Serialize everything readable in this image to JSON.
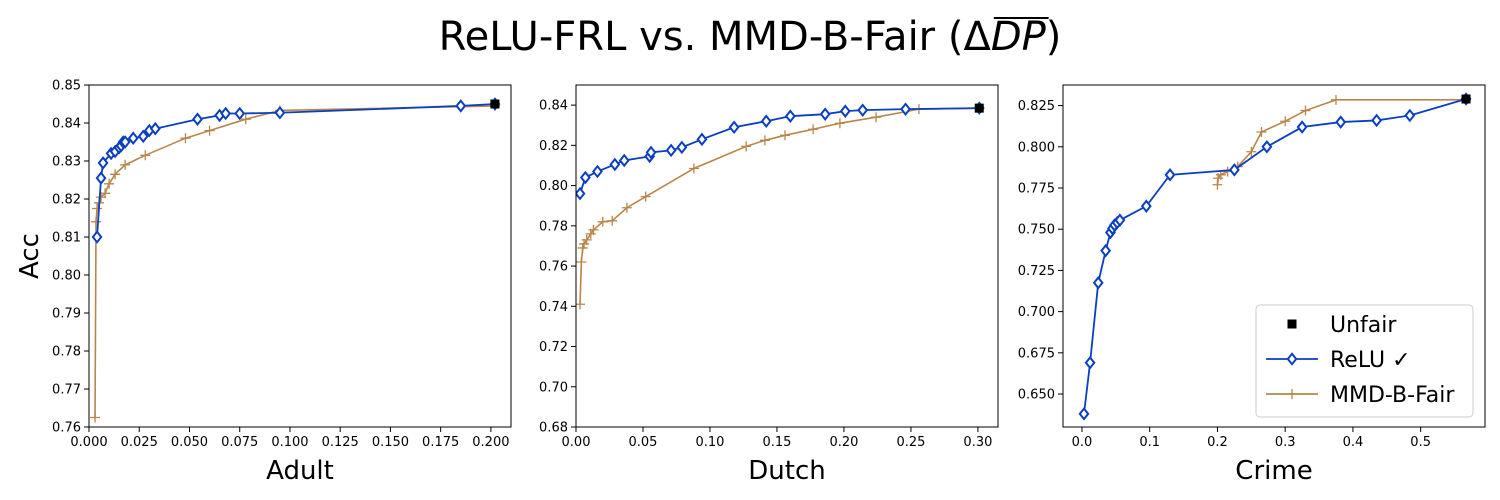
{
  "figure": {
    "title": "ReLU-FRL vs. MMD-B-Fair (ΔDP)",
    "title_main": "ReLU-FRL vs. MMD-B-Fair (Δ",
    "title_dp": "DP",
    "title_close": ")"
  },
  "legend": {
    "placement": "lower-right",
    "entries": [
      "Unfair",
      "ReLU ✓",
      "MMD-B-Fair"
    ]
  },
  "colors": {
    "relu": "#0a3fc2",
    "mmd": "#b8864a",
    "unfair": "#000000"
  },
  "chart_data": [
    {
      "type": "line",
      "xlabel": "Adult",
      "ylabel": "Acc",
      "xlim": [
        0.0,
        0.21
      ],
      "ylim": [
        0.76,
        0.85
      ],
      "xticks": [
        "0.000",
        "0.025",
        "0.050",
        "0.075",
        "0.100",
        "0.125",
        "0.150",
        "0.175",
        "0.200"
      ],
      "xtick_values": [
        0.0,
        0.025,
        0.05,
        0.075,
        0.1,
        0.125,
        0.15,
        0.175,
        0.2
      ],
      "yticks": [
        "0.76",
        "0.77",
        "0.78",
        "0.79",
        "0.80",
        "0.81",
        "0.82",
        "0.83",
        "0.84",
        "0.85"
      ],
      "ytick_values": [
        0.76,
        0.77,
        0.78,
        0.79,
        0.8,
        0.81,
        0.82,
        0.83,
        0.84,
        0.85
      ],
      "series": [
        {
          "name": "Unfair",
          "marker": "square",
          "points": [
            [
              0.202,
              0.845
            ]
          ]
        },
        {
          "name": "ReLU ✓",
          "marker": "diamond",
          "points": [
            [
              0.004,
              0.81
            ],
            [
              0.006,
              0.8255
            ],
            [
              0.007,
              0.8295
            ],
            [
              0.011,
              0.832
            ],
            [
              0.013,
              0.8325
            ],
            [
              0.015,
              0.8335
            ],
            [
              0.016,
              0.834
            ],
            [
              0.017,
              0.835
            ],
            [
              0.018,
              0.835
            ],
            [
              0.022,
              0.836
            ],
            [
              0.027,
              0.8365
            ],
            [
              0.03,
              0.838
            ],
            [
              0.033,
              0.8385
            ],
            [
              0.054,
              0.841
            ],
            [
              0.065,
              0.842
            ],
            [
              0.068,
              0.8425
            ],
            [
              0.075,
              0.8425
            ],
            [
              0.095,
              0.8427
            ],
            [
              0.185,
              0.8445
            ],
            [
              0.202,
              0.845
            ]
          ]
        },
        {
          "name": "MMD-B-Fair",
          "marker": "plus",
          "points": [
            [
              0.003,
              0.7625
            ],
            [
              0.0035,
              0.814
            ],
            [
              0.004,
              0.8175
            ],
            [
              0.005,
              0.819
            ],
            [
              0.006,
              0.8205
            ],
            [
              0.008,
              0.8215
            ],
            [
              0.01,
              0.824
            ],
            [
              0.013,
              0.8265
            ],
            [
              0.018,
              0.829
            ],
            [
              0.028,
              0.8315
            ],
            [
              0.048,
              0.836
            ],
            [
              0.06,
              0.838
            ],
            [
              0.078,
              0.841
            ],
            [
              0.095,
              0.8433
            ],
            [
              0.202,
              0.8445
            ]
          ]
        }
      ]
    },
    {
      "type": "line",
      "xlabel": "Dutch",
      "ylabel": "",
      "xlim": [
        0.0,
        0.315
      ],
      "ylim": [
        0.68,
        0.85
      ],
      "xticks": [
        "0.00",
        "0.05",
        "0.10",
        "0.15",
        "0.20",
        "0.25",
        "0.30"
      ],
      "xtick_values": [
        0.0,
        0.05,
        0.1,
        0.15,
        0.2,
        0.25,
        0.3
      ],
      "yticks": [
        "0.68",
        "0.70",
        "0.72",
        "0.74",
        "0.76",
        "0.78",
        "0.80",
        "0.82",
        "0.84"
      ],
      "ytick_values": [
        0.68,
        0.7,
        0.72,
        0.74,
        0.76,
        0.78,
        0.8,
        0.82,
        0.84
      ],
      "series": [
        {
          "name": "Unfair",
          "marker": "square",
          "points": [
            [
              0.301,
              0.8385
            ]
          ]
        },
        {
          "name": "ReLU ✓",
          "marker": "diamond",
          "points": [
            [
              0.003,
              0.796
            ],
            [
              0.007,
              0.804
            ],
            [
              0.016,
              0.807
            ],
            [
              0.029,
              0.8105
            ],
            [
              0.036,
              0.8125
            ],
            [
              0.055,
              0.8145
            ],
            [
              0.056,
              0.8165
            ],
            [
              0.071,
              0.8175
            ],
            [
              0.079,
              0.819
            ],
            [
              0.094,
              0.823
            ],
            [
              0.118,
              0.829
            ],
            [
              0.142,
              0.832
            ],
            [
              0.16,
              0.8345
            ],
            [
              0.186,
              0.8355
            ],
            [
              0.201,
              0.837
            ],
            [
              0.214,
              0.8375
            ],
            [
              0.246,
              0.838
            ],
            [
              0.301,
              0.8385
            ]
          ]
        },
        {
          "name": "MMD-B-Fair",
          "marker": "plus",
          "points": [
            [
              0.003,
              0.741
            ],
            [
              0.004,
              0.762
            ],
            [
              0.005,
              0.769
            ],
            [
              0.006,
              0.771
            ],
            [
              0.008,
              0.773
            ],
            [
              0.011,
              0.776
            ],
            [
              0.013,
              0.778
            ],
            [
              0.02,
              0.782
            ],
            [
              0.027,
              0.7825
            ],
            [
              0.038,
              0.789
            ],
            [
              0.052,
              0.7945
            ],
            [
              0.088,
              0.8085
            ],
            [
              0.127,
              0.8195
            ],
            [
              0.141,
              0.8225
            ],
            [
              0.156,
              0.825
            ],
            [
              0.177,
              0.828
            ],
            [
              0.197,
              0.831
            ],
            [
              0.224,
              0.834
            ],
            [
              0.256,
              0.838
            ],
            [
              0.301,
              0.8385
            ]
          ]
        }
      ]
    },
    {
      "type": "line",
      "xlabel": "Crime",
      "ylabel": "",
      "xlim": [
        -0.028,
        0.595
      ],
      "ylim": [
        0.63,
        0.8375
      ],
      "xticks": [
        "0.0",
        "0.1",
        "0.2",
        "0.3",
        "0.4",
        "0.5"
      ],
      "xtick_values": [
        0.0,
        0.1,
        0.2,
        0.3,
        0.4,
        0.5
      ],
      "yticks": [
        "0.650",
        "0.675",
        "0.700",
        "0.725",
        "0.750",
        "0.775",
        "0.800",
        "0.825"
      ],
      "ytick_values": [
        0.65,
        0.675,
        0.7,
        0.725,
        0.75,
        0.775,
        0.8,
        0.825
      ],
      "series": [
        {
          "name": "Unfair",
          "marker": "square",
          "points": [
            [
              0.567,
              0.829
            ]
          ]
        },
        {
          "name": "ReLU ✓",
          "marker": "diamond",
          "points": [
            [
              0.003,
              0.638
            ],
            [
              0.012,
              0.669
            ],
            [
              0.024,
              0.7175
            ],
            [
              0.035,
              0.737
            ],
            [
              0.042,
              0.748
            ],
            [
              0.045,
              0.7505
            ],
            [
              0.048,
              0.7525
            ],
            [
              0.052,
              0.754
            ],
            [
              0.056,
              0.7555
            ],
            [
              0.095,
              0.764
            ],
            [
              0.13,
              0.783
            ],
            [
              0.225,
              0.786
            ],
            [
              0.273,
              0.8
            ],
            [
              0.325,
              0.812
            ],
            [
              0.382,
              0.815
            ],
            [
              0.435,
              0.816
            ],
            [
              0.484,
              0.819
            ],
            [
              0.567,
              0.829
            ]
          ]
        },
        {
          "name": "MMD-B-Fair",
          "marker": "plus",
          "points": [
            [
              0.2,
              0.777
            ],
            [
              0.201,
              0.781
            ],
            [
              0.205,
              0.783
            ],
            [
              0.215,
              0.785
            ],
            [
              0.23,
              0.788
            ],
            [
              0.25,
              0.797
            ],
            [
              0.265,
              0.809
            ],
            [
              0.3,
              0.8155
            ],
            [
              0.33,
              0.822
            ],
            [
              0.375,
              0.8285
            ],
            [
              0.567,
              0.8285
            ]
          ]
        }
      ]
    }
  ]
}
